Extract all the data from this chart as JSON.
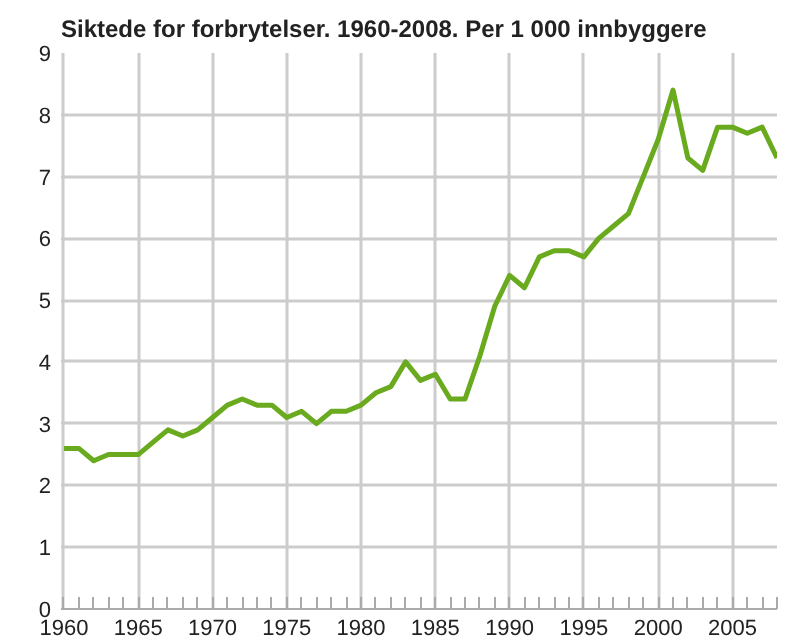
{
  "chart_data": {
    "type": "line",
    "title": "Siktede for forbrytelser. 1960-2008. Per 1 000 innbyggere",
    "x": [
      1960,
      1961,
      1962,
      1963,
      1964,
      1965,
      1966,
      1967,
      1968,
      1969,
      1970,
      1971,
      1972,
      1973,
      1974,
      1975,
      1976,
      1977,
      1978,
      1979,
      1980,
      1981,
      1982,
      1983,
      1984,
      1985,
      1986,
      1987,
      1988,
      1989,
      1990,
      1991,
      1992,
      1993,
      1994,
      1995,
      1996,
      1997,
      1998,
      1999,
      2000,
      2001,
      2002,
      2003,
      2004,
      2005,
      2006,
      2007,
      2008
    ],
    "series": [
      {
        "color": "#6aaa1e",
        "values": [
          2.6,
          2.6,
          2.4,
          2.5,
          2.5,
          2.5,
          2.7,
          2.9,
          2.8,
          2.9,
          3.1,
          3.3,
          3.4,
          3.3,
          3.3,
          3.1,
          3.2,
          3.0,
          3.2,
          3.2,
          3.3,
          3.5,
          3.6,
          4.0,
          3.7,
          3.8,
          3.4,
          3.4,
          4.1,
          4.9,
          5.4,
          5.2,
          5.7,
          5.8,
          5.8,
          5.7,
          6.0,
          6.2,
          6.4,
          7.0,
          7.6,
          8.4,
          7.3,
          7.1,
          7.8,
          7.8,
          7.7,
          7.8,
          7.3
        ]
      }
    ],
    "xlim": [
      1959.8,
      2008
    ],
    "ylim": [
      0,
      9
    ],
    "xticks": [
      1960,
      {
        "value": 1961,
        "label": null
      },
      {
        "value": 1962,
        "label": null
      },
      {
        "value": 1963,
        "label": null
      },
      {
        "value": 1964,
        "label": null
      },
      1965,
      {
        "value": 1966,
        "label": null
      },
      {
        "value": 1967,
        "label": null
      },
      {
        "value": 1968,
        "label": null
      },
      {
        "value": 1969,
        "label": null
      },
      1970,
      {
        "value": 1971,
        "label": null
      },
      {
        "value": 1972,
        "label": null
      },
      {
        "value": 1973,
        "label": null
      },
      {
        "value": 1974,
        "label": null
      },
      1975,
      {
        "value": 1976,
        "label": null
      },
      {
        "value": 1977,
        "label": null
      },
      {
        "value": 1978,
        "label": null
      },
      {
        "value": 1979,
        "label": null
      },
      1980,
      {
        "value": 1981,
        "label": null
      },
      {
        "value": 1982,
        "label": null
      },
      {
        "value": 1983,
        "label": null
      },
      {
        "value": 1984,
        "label": null
      },
      1985,
      {
        "value": 1986,
        "label": null
      },
      {
        "value": 1987,
        "label": null
      },
      {
        "value": 1988,
        "label": null
      },
      {
        "value": 1989,
        "label": null
      },
      1990,
      {
        "value": 1991,
        "label": null
      },
      {
        "value": 1992,
        "label": null
      },
      {
        "value": 1993,
        "label": null
      },
      {
        "value": 1994,
        "label": null
      },
      1995,
      {
        "value": 1996,
        "label": null
      },
      {
        "value": 1997,
        "label": null
      },
      {
        "value": 1998,
        "label": null
      },
      {
        "value": 1999,
        "label": null
      },
      2000,
      {
        "value": 2001,
        "label": null
      },
      {
        "value": 2002,
        "label": null
      },
      {
        "value": 2003,
        "label": null
      },
      {
        "value": 2004,
        "label": null
      },
      2005,
      {
        "value": 2006,
        "label": null
      },
      {
        "value": 2007,
        "label": null
      },
      {
        "value": 2008,
        "label": null
      }
    ],
    "yticks": [
      0,
      1,
      2,
      3,
      4,
      5,
      6,
      7,
      8,
      9
    ],
    "grid": true,
    "marker": "none",
    "line_style": "solid"
  }
}
